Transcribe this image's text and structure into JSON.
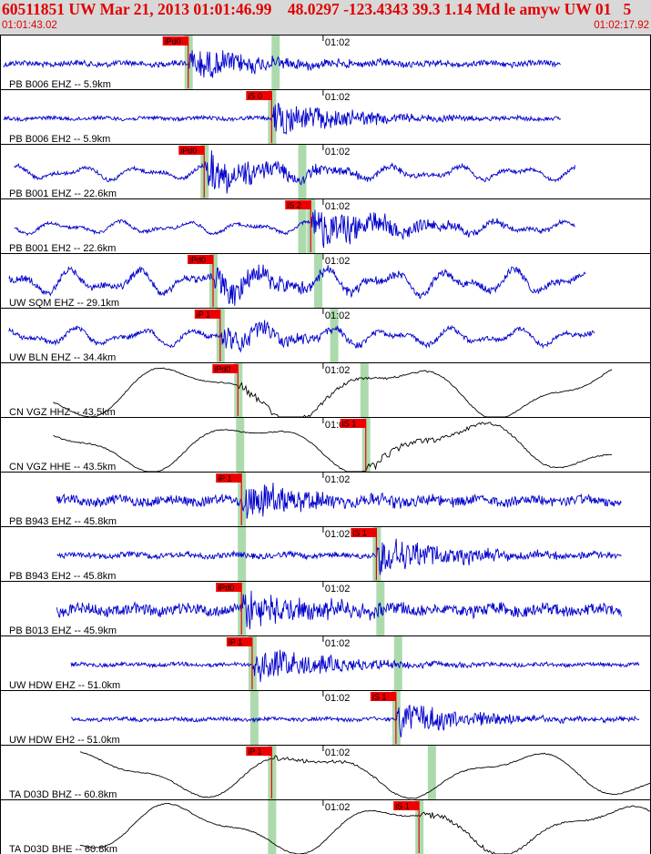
{
  "header": {
    "title": "60511851 UW Mar 21, 2013 01:01:46.99    48.0297 -123.4343 39.3 1.14 Md le amyw UW 01   5",
    "start_time": "01:01:43.02",
    "end_time": "01:02:17.92"
  },
  "chart_data": {
    "type": "line",
    "title": "60511851 UW Mar 21, 2013 01:01:46.99    48.0297 -123.4343 39.3 1.14 Md le amyw UW 01   5",
    "time_start": "01:01:43.02",
    "time_end": "01:02:17.92",
    "tick_label": "01:02",
    "colors": {
      "velocity": "#0000cc",
      "broadband": "#000000",
      "pick": "#ee0000",
      "window": "#9fd49f"
    },
    "series": [
      {
        "name": "PB B006 EHZ -- 5.9km",
        "pick": "iPd0",
        "pick_t": 10.6,
        "win_t": 15.5,
        "color": "blue",
        "t0": 0.2,
        "t1": 31.6,
        "style": "hf",
        "amp": 3,
        "evt_amp": 18
      },
      {
        "name": "PB B006 EH2 -- 5.9km",
        "pick": "iS 0",
        "pick_t": 15.3,
        "win_t": 15.3,
        "color": "blue",
        "t0": 0.2,
        "t1": 31.6,
        "style": "hf",
        "amp": 2,
        "evt_amp": 20
      },
      {
        "name": "PB B001 EHZ -- 22.6km",
        "pick": "iPd0",
        "pick_t": 11.5,
        "win_t": 17.0,
        "color": "blue",
        "t0": 0.8,
        "t1": 32.4,
        "style": "mix",
        "amp": 8,
        "evt_amp": 22
      },
      {
        "name": "PB B001 EH2 -- 22.6km",
        "pick": "iS 2",
        "pick_t": 17.5,
        "win_t": 17.0,
        "color": "blue",
        "t0": 0.8,
        "t1": 32.4,
        "style": "mix",
        "amp": 7,
        "evt_amp": 25
      },
      {
        "name": "UW SQM EHZ -- 29.1km",
        "pick": "iPd0",
        "pick_t": 12.0,
        "win_t": 17.9,
        "color": "blue",
        "t0": 0.5,
        "t1": 33.0,
        "style": "mix",
        "amp": 14,
        "evt_amp": 16
      },
      {
        "name": "UW BLN EHZ -- 34.4km",
        "pick": "iP 1",
        "pick_t": 12.4,
        "win_t": 18.8,
        "color": "blue",
        "t0": 0.5,
        "t1": 33.5,
        "style": "mix",
        "amp": 10,
        "evt_amp": 14
      },
      {
        "name": "CN VGZ HHZ -- 43.5km",
        "pick": "iPd0",
        "pick_t": 13.4,
        "win_t": 20.5,
        "color": "black",
        "t0": 3.0,
        "t1": 34.5,
        "style": "long",
        "amp": 24,
        "evt_amp": 6
      },
      {
        "name": "CN VGZ HHE -- 43.5km",
        "pick": "iS 1",
        "pick_t": 20.6,
        "win_t": 13.5,
        "color": "black",
        "t0": 3.0,
        "t1": 34.5,
        "style": "long",
        "amp": 22,
        "evt_amp": 6
      },
      {
        "name": "PB B943 EHZ -- 45.8km",
        "pick": "iP 1",
        "pick_t": 13.6,
        "win_t": 13.6,
        "color": "blue",
        "t0": 3.2,
        "t1": 35.0,
        "style": "hf",
        "amp": 5,
        "evt_amp": 20
      },
      {
        "name": "PB B943 EH2 -- 45.8km",
        "pick": "iS 1",
        "pick_t": 21.2,
        "win_t": 13.6,
        "color": "blue",
        "t0": 3.2,
        "t1": 35.0,
        "style": "hf",
        "amp": 3,
        "evt_amp": 22
      },
      {
        "name": "PB B013 EHZ -- 45.9km",
        "pick": "iPd0",
        "pick_t": 13.6,
        "win_t": 21.4,
        "color": "blue",
        "t0": 3.2,
        "t1": 35.0,
        "style": "hf",
        "amp": 6,
        "evt_amp": 20
      },
      {
        "name": "UW HDW EHZ -- 51.0km",
        "pick": "iP 1",
        "pick_t": 14.2,
        "win_t": 22.4,
        "color": "blue",
        "t0": 4.0,
        "t1": 36.0,
        "style": "hf",
        "amp": 2,
        "evt_amp": 20
      },
      {
        "name": "UW HDW EH2 -- 51.0km",
        "pick": "iS 1",
        "pick_t": 22.3,
        "win_t": 14.3,
        "color": "blue",
        "t0": 4.0,
        "t1": 36.0,
        "style": "hf",
        "amp": 2,
        "evt_amp": 20
      },
      {
        "name": "TA D03D BHZ -- 60.8km",
        "pick": "iP 1",
        "pick_t": 15.3,
        "win_t": 24.3,
        "color": "black",
        "t0": 4.5,
        "t1": 37.0,
        "style": "long",
        "amp": 20,
        "evt_amp": 3
      },
      {
        "name": "TA D03D BHE -- 60.8km",
        "pick": "iS 1",
        "pick_t": 23.6,
        "win_t": 15.3,
        "color": "black",
        "t0": 4.5,
        "t1": 37.0,
        "style": "long",
        "amp": 22,
        "evt_amp": 4
      }
    ]
  }
}
